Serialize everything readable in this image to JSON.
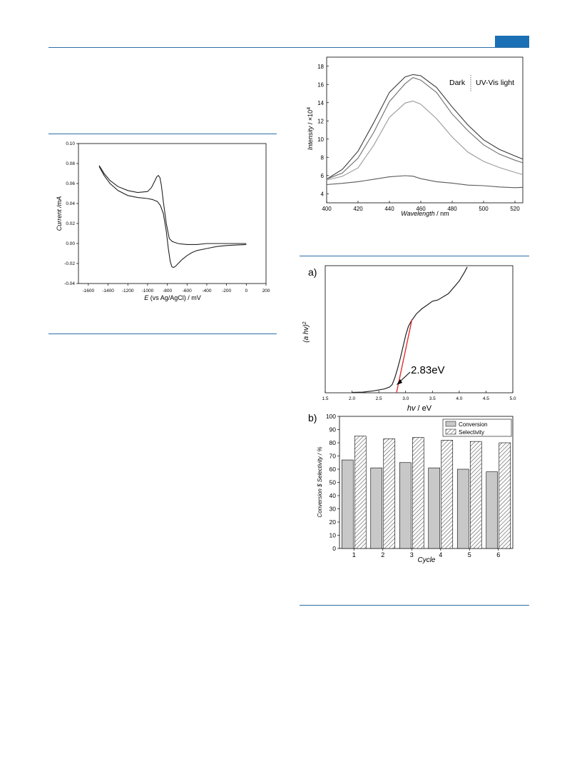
{
  "header": {
    "accent_color": "#1b6fb5",
    "rule_color": "#2f6ea8"
  },
  "chart_data": [
    {
      "id": "cv",
      "type": "line",
      "xlabel": "(vs Ag/AgCl) / mV",
      "xlabel_var": "E",
      "ylabel": "Current /mA",
      "xlim": [
        -1700,
        200
      ],
      "ylim": [
        -0.04,
        0.1
      ],
      "x_ticks": [
        "-1600",
        "-1400",
        "-1200",
        "-1000",
        "-800",
        "-600",
        "-400",
        "-200",
        "0",
        "200"
      ],
      "y_ticks": [
        "-0.04",
        "-0.02",
        "0.00",
        "0.02",
        "0.04",
        "0.06",
        "0.08",
        "0.10"
      ],
      "series": [
        {
          "x": [
            -1490,
            -1440,
            -1380,
            -1300,
            -1200,
            -1100,
            -1000,
            -960,
            -930,
            -905,
            -890,
            -875,
            -860,
            -840,
            -810,
            -780,
            -750,
            -720,
            -690,
            -650,
            -600,
            -500,
            -400,
            -300,
            -200,
            -100,
            0
          ],
          "y": [
            0.078,
            0.07,
            0.063,
            0.057,
            0.053,
            0.051,
            0.052,
            0.056,
            0.062,
            0.067,
            0.068,
            0.066,
            0.058,
            0.042,
            0.02,
            0.005,
            0.002,
            0.001,
            0.0,
            -0.0005,
            -0.001,
            -0.001,
            0.0,
            0.0,
            0.0,
            0.0,
            0.0
          ]
        },
        {
          "x": [
            0,
            -100,
            -200,
            -300,
            -400,
            -500,
            -550,
            -600,
            -650,
            -690,
            -720,
            -740,
            -755,
            -770,
            -790,
            -810,
            -840,
            -870,
            -900,
            -950,
            -1000,
            -1100,
            -1200,
            -1300,
            -1380,
            -1440,
            -1490
          ],
          "y": [
            -0.001,
            -0.0015,
            -0.002,
            -0.003,
            -0.005,
            -0.007,
            -0.009,
            -0.012,
            -0.016,
            -0.02,
            -0.023,
            -0.024,
            -0.023,
            -0.018,
            -0.005,
            0.012,
            0.03,
            0.038,
            0.042,
            0.044,
            0.045,
            0.046,
            0.048,
            0.053,
            0.06,
            0.068,
            0.077
          ]
        }
      ]
    },
    {
      "id": "pl",
      "type": "line",
      "xlabel": "Wavelength",
      "xlabel_unit": " / nm",
      "ylabel": "Intensity / ×10",
      "ylabel_exp": "4",
      "xlim": [
        400,
        525
      ],
      "ylim": [
        3,
        19
      ],
      "x_ticks": [
        "400",
        "420",
        "440",
        "460",
        "480",
        "500",
        "520"
      ],
      "y_ticks": [
        "4",
        "6",
        "8",
        "10",
        "12",
        "14",
        "16",
        "18"
      ],
      "legend": {
        "left": "Dark",
        "right": "UV-Vis light"
      },
      "x": [
        400,
        410,
        420,
        430,
        440,
        450,
        455,
        460,
        470,
        480,
        490,
        500,
        510,
        520,
        525
      ],
      "series": [
        {
          "color": "#3a3a3a",
          "values": [
            5.6,
            6.6,
            8.6,
            11.8,
            15.2,
            16.9,
            17.1,
            16.9,
            15.6,
            13.5,
            11.6,
            10.0,
            8.9,
            8.1,
            7.8
          ]
        },
        {
          "color": "#6e6e6e",
          "values": [
            5.6,
            6.2,
            7.9,
            10.8,
            14.2,
            16.1,
            16.7,
            16.4,
            15.1,
            12.8,
            11.0,
            9.4,
            8.3,
            7.6,
            7.4
          ]
        },
        {
          "color": "#9a9a9a",
          "values": [
            5.5,
            5.9,
            6.9,
            9.4,
            12.4,
            13.9,
            14.1,
            13.8,
            12.3,
            10.3,
            8.6,
            7.5,
            6.8,
            6.3,
            6.1
          ]
        },
        {
          "color": "#5a5a5a",
          "values": [
            5.0,
            5.2,
            5.4,
            5.6,
            5.8,
            5.9,
            5.9,
            5.7,
            5.4,
            5.2,
            4.9,
            4.8,
            4.7,
            4.7,
            4.7
          ]
        }
      ]
    },
    {
      "id": "tauc",
      "type": "line",
      "panel_label": "a)",
      "xlabel": "hv",
      "xlabel_unit": " / eV",
      "ylabel": "(a hv)",
      "ylabel_exp": "2",
      "xlim": [
        1.5,
        5.0
      ],
      "ylim": [
        0,
        100
      ],
      "x_ticks": [
        "1.5",
        "2.0",
        "2.5",
        "3.0",
        "3.5",
        "4.0",
        "4.5",
        "5.0"
      ],
      "annotation": "2.83eV",
      "fit_line_color": "#e03030",
      "x": [
        2.0,
        2.2,
        2.4,
        2.6,
        2.7,
        2.75,
        2.8,
        2.85,
        2.9,
        2.95,
        3.0,
        3.05,
        3.1,
        3.2,
        3.3,
        3.4,
        3.5,
        3.6,
        3.8,
        4.0,
        4.1,
        4.15
      ],
      "values": [
        0.3,
        0.5,
        1.5,
        3.0,
        4.5,
        6.5,
        12,
        19,
        27,
        36,
        45,
        52,
        56,
        62,
        66,
        69,
        72,
        73,
        78,
        88,
        95,
        99
      ],
      "fit_x": [
        2.83,
        3.12
      ],
      "fit_y": [
        0,
        58
      ]
    },
    {
      "id": "recycle",
      "type": "bar",
      "panel_label": "b)",
      "xlabel": "Cycle",
      "ylabel": "Conversion $ Selectivity / %",
      "ylim": [
        0,
        100
      ],
      "categories": [
        "1",
        "2",
        "3",
        "4",
        "5",
        "6"
      ],
      "y_ticks": [
        "0",
        "10",
        "20",
        "30",
        "40",
        "50",
        "60",
        "70",
        "80",
        "90",
        "100"
      ],
      "series": [
        {
          "name": "Conversion",
          "values": [
            67,
            61,
            65,
            61,
            60,
            58
          ]
        },
        {
          "name": "Selectivity",
          "values": [
            85,
            83,
            84,
            82,
            81,
            80
          ]
        }
      ]
    }
  ]
}
